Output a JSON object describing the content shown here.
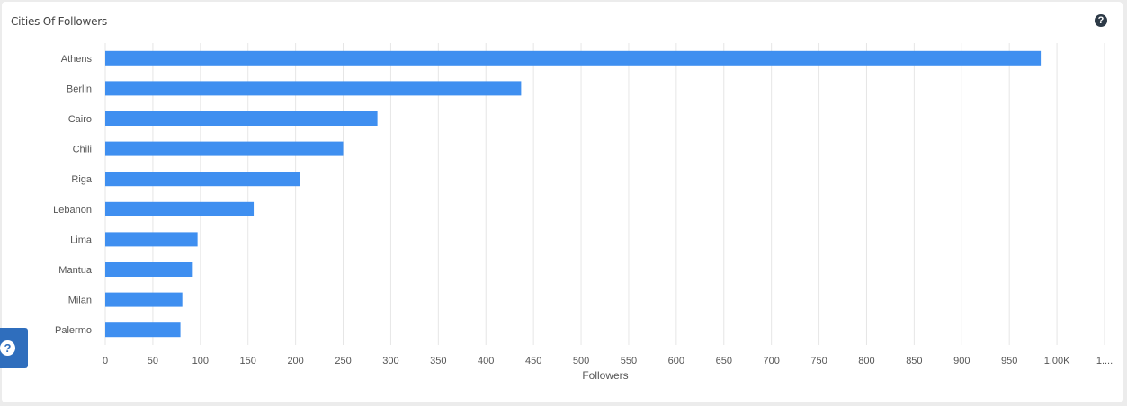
{
  "card": {
    "title": "Cities Of Followers",
    "help_icon": "question-circle-icon",
    "side_help_icon": "question-circle-icon"
  },
  "chart_data": {
    "type": "bar",
    "orientation": "horizontal",
    "categories": [
      "Athens",
      "Berlin",
      "Cairo",
      "Chili",
      "Riga",
      "Lebanon",
      "Lima",
      "Mantua",
      "Milan",
      "Palermo"
    ],
    "values": [
      983,
      437,
      286,
      250,
      205,
      156,
      97,
      92,
      81,
      79
    ],
    "xlabel": "Followers",
    "ylabel": "",
    "xlim": [
      0,
      1050
    ],
    "x_ticks": [
      "0",
      "50",
      "100",
      "150",
      "200",
      "250",
      "300",
      "350",
      "400",
      "450",
      "500",
      "550",
      "600",
      "650",
      "700",
      "750",
      "800",
      "850",
      "900",
      "950",
      "1.00K",
      "1...."
    ],
    "x_tick_values": [
      0,
      50,
      100,
      150,
      200,
      250,
      300,
      350,
      400,
      450,
      500,
      550,
      600,
      650,
      700,
      750,
      800,
      850,
      900,
      950,
      1000,
      1050
    ],
    "bar_color": "#3f8ff0",
    "grid_color": "#e6e6e6",
    "grid": true,
    "legend": false
  }
}
